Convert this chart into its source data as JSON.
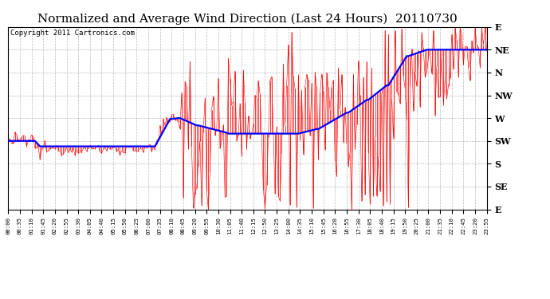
{
  "title": "Normalized and Average Wind Direction (Last 24 Hours)  20110730",
  "copyright": "Copyright 2011 Cartronics.com",
  "ytick_labels": [
    "E",
    "NE",
    "N",
    "NW",
    "W",
    "SW",
    "S",
    "SE",
    "E"
  ],
  "ytick_values": [
    1.0,
    0.875,
    0.75,
    0.625,
    0.5,
    0.375,
    0.25,
    0.125,
    0.0
  ],
  "background_color": "#ffffff",
  "grid_color": "#aaaaaa",
  "red_color": "#ff0000",
  "blue_color": "#0000ff",
  "title_fontsize": 11,
  "copyright_fontsize": 6.5,
  "xlim": [
    0,
    287
  ],
  "ylim": [
    0.0,
    1.0
  ]
}
